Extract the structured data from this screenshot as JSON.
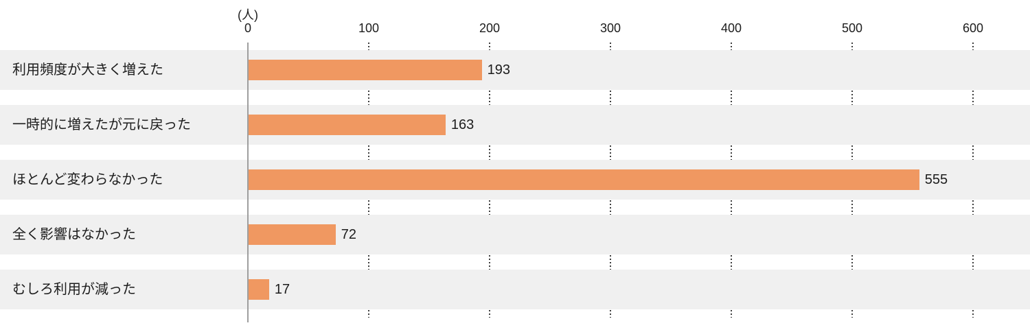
{
  "chart_data": {
    "type": "bar",
    "orientation": "horizontal",
    "title": "",
    "unit_label": "(人)",
    "categories": [
      "利用頻度が大きく増えた",
      "一時的に増えたが元に戻った",
      "ほとんど変わらなかった",
      "全く影響はなかった",
      "むしろ利用が減った"
    ],
    "values": [
      193,
      163,
      555,
      72,
      17
    ],
    "x_ticks": [
      "0",
      "100",
      "200",
      "300",
      "400",
      "500",
      "600"
    ],
    "xlim": [
      0,
      600
    ],
    "legend": "none",
    "grid": "vertical dotted lines at every 100, visible between row stripes",
    "colors": {
      "bar": "#f09861",
      "row_stripe": "#f0f0f0",
      "axis_line": "#9e9e9e",
      "grid_dot": "#3c3c3c",
      "text": "#1c1c1c"
    }
  }
}
